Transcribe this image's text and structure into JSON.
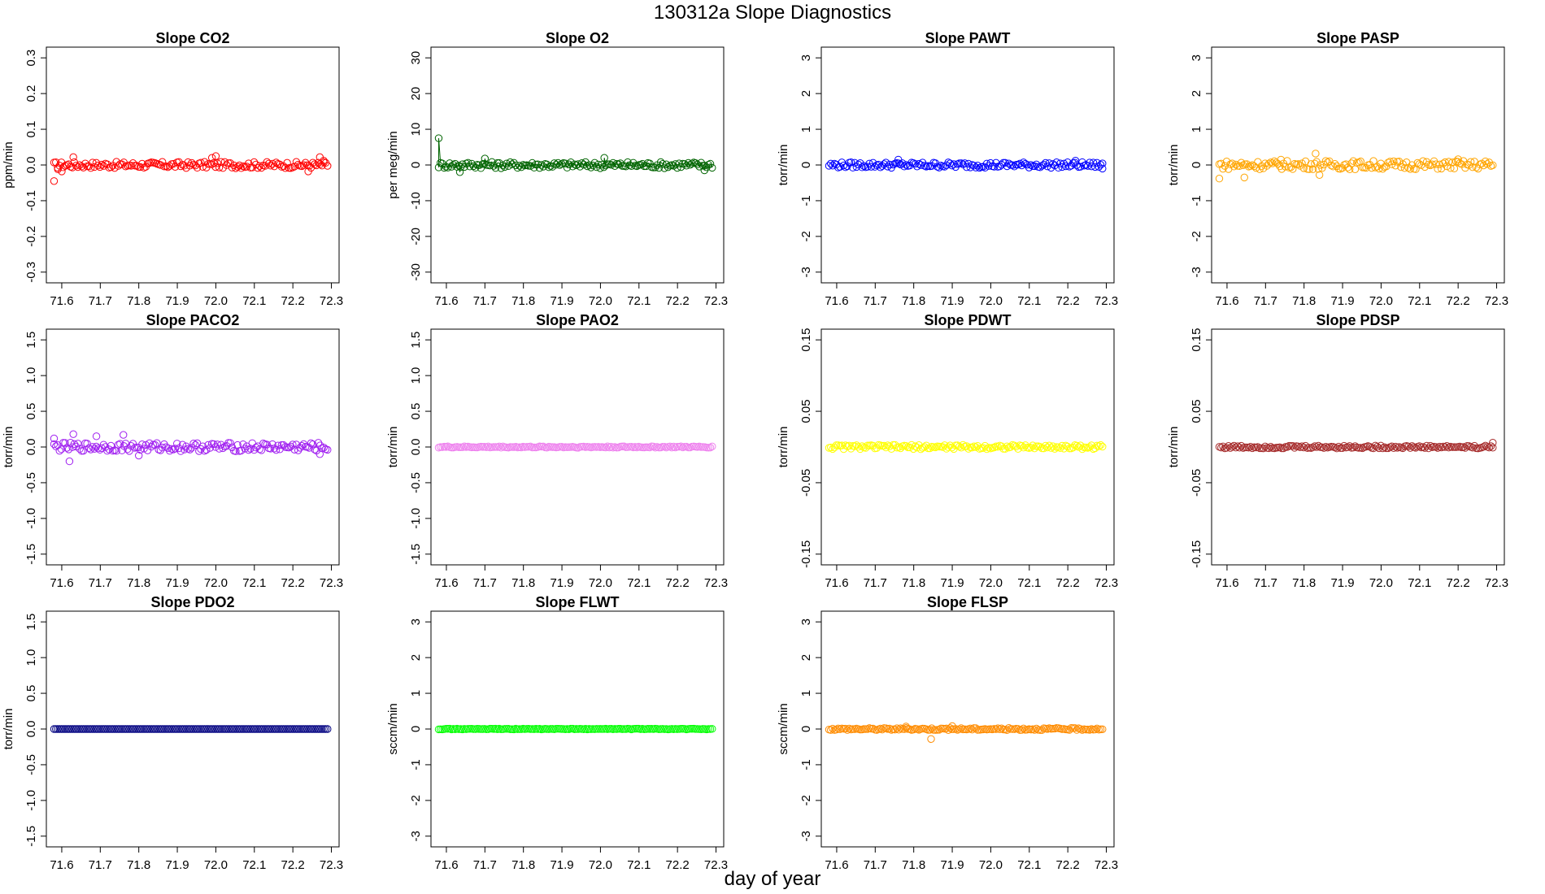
{
  "title": "130312a   Slope Diagnostics",
  "xlabel": "day of year",
  "chart_data": [
    {
      "type": "scatter",
      "title": "Slope CO2",
      "ylabel": "ppm/min",
      "color": "#ff0000",
      "xlim": [
        71.56,
        72.32
      ],
      "ylim": [
        -0.33,
        0.33
      ],
      "xticks": [
        71.6,
        71.7,
        71.8,
        71.9,
        72.0,
        72.1,
        72.2,
        72.3
      ],
      "yticks": [
        -0.3,
        -0.2,
        -0.1,
        0.0,
        0.1,
        0.2,
        0.3
      ],
      "xrange": [
        71.58,
        72.29
      ],
      "base": 0.0,
      "amp": 0.009,
      "points": [
        [
          71.58,
          -0.045
        ],
        [
          71.59,
          -0.012
        ],
        [
          71.6,
          -0.018
        ],
        [
          71.63,
          0.022
        ],
        [
          71.99,
          0.02
        ],
        [
          72.0,
          0.025
        ],
        [
          72.27,
          0.022
        ],
        [
          72.24,
          -0.018
        ],
        [
          72.28,
          0.012
        ]
      ]
    },
    {
      "type": "scatter",
      "title": "Slope O2",
      "ylabel": "per meg/min",
      "color": "#006400",
      "xlim": [
        71.56,
        72.32
      ],
      "ylim": [
        -33,
        33
      ],
      "xticks": [
        71.6,
        71.7,
        71.8,
        71.9,
        72.0,
        72.1,
        72.2,
        72.3
      ],
      "yticks": [
        -30,
        -20,
        -10,
        0,
        10,
        20,
        30
      ],
      "xrange": [
        71.58,
        72.29
      ],
      "base": 0.0,
      "amp": 0.9,
      "line": true,
      "points": [
        [
          71.58,
          7.5
        ],
        [
          71.635,
          -2.0
        ],
        [
          71.7,
          1.8
        ],
        [
          72.01,
          2.0
        ],
        [
          72.27,
          -1.5
        ]
      ]
    },
    {
      "type": "scatter",
      "title": "Slope PAWT",
      "ylabel": "torr/min",
      "color": "#0000ff",
      "xlim": [
        71.56,
        72.32
      ],
      "ylim": [
        -3.3,
        3.3
      ],
      "xticks": [
        71.6,
        71.7,
        71.8,
        71.9,
        72.0,
        72.1,
        72.2,
        72.3
      ],
      "yticks": [
        -3,
        -2,
        -1,
        0,
        1,
        2,
        3
      ],
      "xrange": [
        71.58,
        72.29
      ],
      "base": 0.0,
      "amp": 0.08,
      "points": [
        [
          71.76,
          0.15
        ],
        [
          72.22,
          0.12
        ],
        [
          72.29,
          -0.1
        ]
      ]
    },
    {
      "type": "scatter",
      "title": "Slope PASP",
      "ylabel": "torr/min",
      "color": "#ffa500",
      "xlim": [
        71.56,
        72.32
      ],
      "ylim": [
        -3.3,
        3.3
      ],
      "xticks": [
        71.6,
        71.7,
        71.8,
        71.9,
        72.0,
        72.1,
        72.2,
        72.3
      ],
      "yticks": [
        -3,
        -2,
        -1,
        0,
        1,
        2,
        3
      ],
      "xrange": [
        71.58,
        72.29
      ],
      "base": 0.0,
      "amp": 0.12,
      "points": [
        [
          71.58,
          -0.38
        ],
        [
          71.645,
          -0.35
        ],
        [
          71.83,
          0.32
        ],
        [
          71.84,
          -0.28
        ],
        [
          71.74,
          0.15
        ],
        [
          72.2,
          0.16
        ]
      ]
    },
    {
      "type": "scatter",
      "title": "Slope PACO2",
      "ylabel": "torr/min",
      "color": "#a020f0",
      "xlim": [
        71.56,
        72.32
      ],
      "ylim": [
        -1.65,
        1.65
      ],
      "xticks": [
        71.6,
        71.7,
        71.8,
        71.9,
        72.0,
        72.1,
        72.2,
        72.3
      ],
      "yticks": [
        -1.5,
        -1.0,
        -0.5,
        0.0,
        0.5,
        1.0,
        1.5
      ],
      "xrange": [
        71.58,
        72.29
      ],
      "base": 0.0,
      "amp": 0.06,
      "points": [
        [
          71.58,
          0.12
        ],
        [
          71.62,
          -0.2
        ],
        [
          71.63,
          0.18
        ],
        [
          71.69,
          0.15
        ],
        [
          71.76,
          0.17
        ],
        [
          71.8,
          -0.12
        ],
        [
          72.27,
          -0.1
        ]
      ]
    },
    {
      "type": "scatter",
      "title": "Slope PAO2",
      "ylabel": "torr/min",
      "color": "#ee82ee",
      "xlim": [
        71.56,
        72.32
      ],
      "ylim": [
        -1.65,
        1.65
      ],
      "xticks": [
        71.6,
        71.7,
        71.8,
        71.9,
        72.0,
        72.1,
        72.2,
        72.3
      ],
      "yticks": [
        -1.5,
        -1.0,
        -0.5,
        0.0,
        0.5,
        1.0,
        1.5
      ],
      "xrange": [
        71.58,
        72.29
      ],
      "base": 0.0,
      "amp": 0.01,
      "points": []
    },
    {
      "type": "scatter",
      "title": "Slope PDWT",
      "ylabel": "torr/min",
      "color": "#ffff00",
      "xlim": [
        71.56,
        72.32
      ],
      "ylim": [
        -0.165,
        0.165
      ],
      "xticks": [
        71.6,
        71.7,
        71.8,
        71.9,
        72.0,
        72.1,
        72.2,
        72.3
      ],
      "yticks": [
        -0.15,
        -0.05,
        0.05,
        0.15
      ],
      "xrange": [
        71.58,
        72.29
      ],
      "base": 0.0,
      "amp": 0.003,
      "points": []
    },
    {
      "type": "scatter",
      "title": "Slope PDSP",
      "ylabel": "torr/min",
      "color": "#a52a2a",
      "xlim": [
        71.56,
        72.32
      ],
      "ylim": [
        -0.165,
        0.165
      ],
      "xticks": [
        71.6,
        71.7,
        71.8,
        71.9,
        72.0,
        72.1,
        72.2,
        72.3
      ],
      "yticks": [
        -0.15,
        -0.05,
        0.05,
        0.15
      ],
      "xrange": [
        71.58,
        72.29
      ],
      "base": 0.0,
      "amp": 0.002,
      "points": [
        [
          72.29,
          0.006
        ]
      ]
    },
    {
      "type": "scatter",
      "title": "Slope PDO2",
      "ylabel": "torr/min",
      "color": "#000080",
      "xlim": [
        71.56,
        72.32
      ],
      "ylim": [
        -1.65,
        1.65
      ],
      "xticks": [
        71.6,
        71.7,
        71.8,
        71.9,
        72.0,
        72.1,
        72.2,
        72.3
      ],
      "yticks": [
        -1.5,
        -1.0,
        -0.5,
        0.0,
        0.5,
        1.0,
        1.5
      ],
      "xrange": [
        71.58,
        72.29
      ],
      "base": 0.0,
      "amp": 0.0,
      "points": []
    },
    {
      "type": "scatter",
      "title": "Slope FLWT",
      "ylabel": "sccm/min",
      "color": "#00ff00",
      "xlim": [
        71.56,
        72.32
      ],
      "ylim": [
        -3.3,
        3.3
      ],
      "xticks": [
        71.6,
        71.7,
        71.8,
        71.9,
        72.0,
        72.1,
        72.2,
        72.3
      ],
      "yticks": [
        -3,
        -2,
        -1,
        0,
        1,
        2,
        3
      ],
      "xrange": [
        71.58,
        72.29
      ],
      "base": 0.0,
      "amp": 0.01,
      "points": []
    },
    {
      "type": "scatter",
      "title": "Slope FLSP",
      "ylabel": "sccm/min",
      "color": "#ff8c00",
      "xlim": [
        71.56,
        72.32
      ],
      "ylim": [
        -3.3,
        3.3
      ],
      "xticks": [
        71.6,
        71.7,
        71.8,
        71.9,
        72.0,
        72.1,
        72.2,
        72.3
      ],
      "yticks": [
        -3,
        -2,
        -1,
        0,
        1,
        2,
        3
      ],
      "xrange": [
        71.58,
        72.29
      ],
      "base": 0.0,
      "amp": 0.03,
      "points": [
        [
          71.845,
          -0.28
        ],
        [
          71.9,
          0.08
        ],
        [
          71.78,
          0.07
        ]
      ]
    }
  ]
}
